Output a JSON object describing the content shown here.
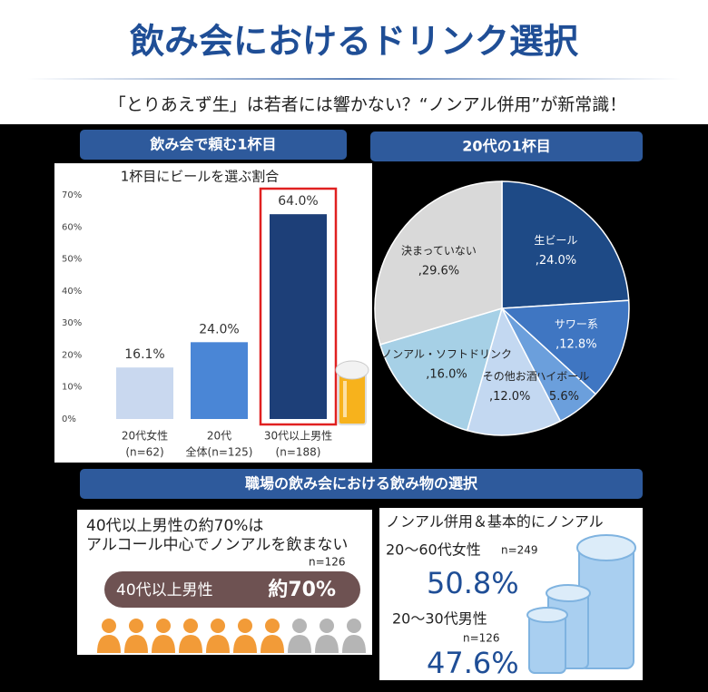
{
  "header": {
    "title": "飲み会におけるドリンク選択",
    "subtitle": "「とりあえず生」は若者には響かない？“ノンアル併用”が新常識！"
  },
  "chart_data": [
    {
      "type": "bar",
      "heading": "飲み会で頼む1杯目",
      "title": "1杯目にビールを選ぶ割合",
      "categories": [
        "20代女性",
        "20代",
        "30代以上男性"
      ],
      "category_notes": [
        "(n=62)",
        "全体(n=125)",
        "(n=188)"
      ],
      "values": [
        16.1,
        24.0,
        64.0
      ],
      "value_labels": [
        "16.1%",
        "24.0%",
        "64.0%"
      ],
      "colors": [
        "#c9d8ef",
        "#4a86d6",
        "#1d3f78"
      ],
      "ylim": [
        0,
        70
      ],
      "yticks": [
        {
          "value": 0,
          "label": "0%"
        },
        {
          "value": 10,
          "label": "10%"
        },
        {
          "value": 20,
          "label": "20%"
        },
        {
          "value": 30,
          "label": "30%"
        },
        {
          "value": 40,
          "label": "40%"
        },
        {
          "value": 50,
          "label": "50%"
        },
        {
          "value": 60,
          "label": "60%"
        },
        {
          "value": 70,
          "label": "70%"
        }
      ]
    },
    {
      "type": "pie",
      "heading": "20代の1杯目",
      "categories": [
        "生ビール",
        "サワー系",
        "ハイボール",
        "その他お酒",
        "ノンアル・ソフトドリンク",
        "決まっていない"
      ],
      "values": [
        24.0,
        12.8,
        5.6,
        12.0,
        16.0,
        29.6
      ],
      "value_labels": [
        ",24.0%",
        ",12.8%",
        ",5.6%",
        ",12.0%",
        ",16.0%",
        ",29.6%"
      ],
      "colors": [
        "#1e4a86",
        "#3f76c2",
        "#6b9fdc",
        "#c3d8f1",
        "#a6d0e6",
        "#d9d9d9"
      ]
    }
  ],
  "workplace": {
    "heading": "職場の飲み会における飲み物の選択",
    "left": {
      "lines": [
        "40代以上男性の約70%は",
        "アルコール中心でノンアルを飲まない"
      ],
      "n": "n=126",
      "group": "40代以上男性",
      "value": "約70%"
    },
    "right": {
      "title": "ノンアル併用＆基本的にノンアル",
      "groups": [
        {
          "name": "20～60代女性",
          "n": "n=249",
          "value": "50.8%"
        },
        {
          "name": "20～30代男性",
          "n": "n=126",
          "value": "47.6%"
        }
      ]
    }
  }
}
